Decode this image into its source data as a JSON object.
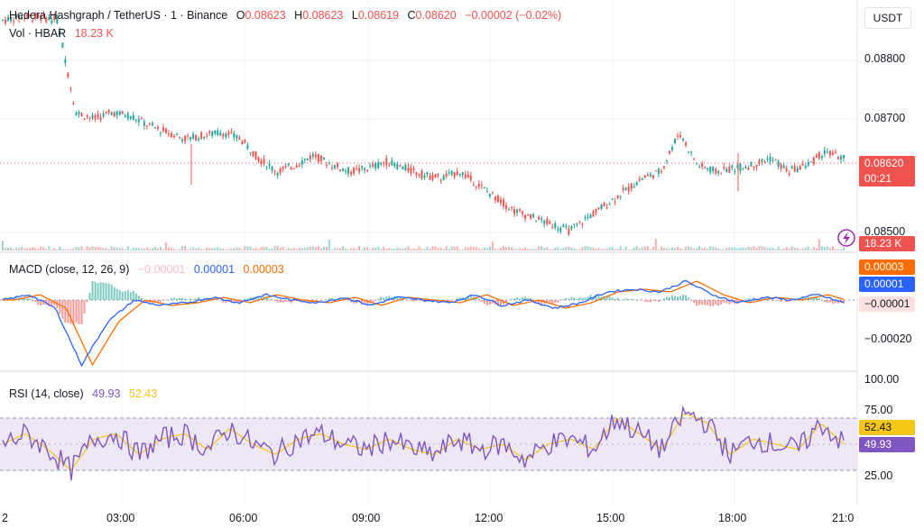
{
  "header": {
    "symbol": "Hedera Hashgraph / TetherUS · 1 · Binance",
    "o_label": "O",
    "o_value": "0.08623",
    "h_label": "H",
    "h_value": "0.08623",
    "l_label": "L",
    "l_value": "0.08619",
    "c_label": "C",
    "c_value": "0.08620",
    "change": "−0.00002 (−0.02%)",
    "vol_label": "Vol · HBAR",
    "vol_value": "18.23 K"
  },
  "price_axis": {
    "currency": "USDT",
    "ticks": [
      "0.08800",
      "0.08700",
      "0.08500"
    ],
    "last_price": "0.08620",
    "countdown": "00:21",
    "volume_tag": "18.23 K"
  },
  "macd": {
    "title": "MACD (close, 12, 26, 9)",
    "hist_value": "−0.00001",
    "macd_value": "0.00001",
    "signal_value": "0.00003",
    "tag_signal": "0.00003",
    "tag_macd": "0.00001",
    "tag_hist": "−0.00001",
    "tick": "−0.00020"
  },
  "rsi": {
    "title": "RSI (14, close)",
    "rsi_value": "49.93",
    "ma_value": "52.43",
    "ticks": [
      "100.00",
      "75.00",
      "25.00"
    ],
    "tag_ma": "52.43",
    "tag_rsi": "49.93"
  },
  "time_axis": [
    "2",
    "03:00",
    "06:00",
    "09:00",
    "12:00",
    "15:00",
    "18:00",
    "21:0"
  ],
  "colors": {
    "up": "#26a69a",
    "down": "#ef5350",
    "macd": "#2962ff",
    "signal": "#ff6d00",
    "rsi": "#7e57c2",
    "rsi_ma": "#f5c518",
    "band": "#ede7f6"
  },
  "chart_data": [
    {
      "type": "line",
      "title": "Hedera Hashgraph / TetherUS · 1 · Binance",
      "series": [
        {
          "values": [
            0.0883,
            0.08835,
            0.08835,
            0.0883,
            0.0869,
            0.0868,
            0.0869,
            0.08685,
            0.0867,
            0.0866,
            0.0865,
            0.08655,
            0.0866,
            0.0865,
            0.0862,
            0.086,
            0.0861,
            0.08625,
            0.0861,
            0.086,
            0.08605,
            0.08615,
            0.08605,
            0.08595,
            0.0859,
            0.086,
            0.0858,
            0.0856,
            0.0854,
            0.0853,
            0.0852,
            0.0851,
            0.0853,
            0.0855,
            0.0857,
            0.0859,
            0.086,
            0.0866,
            0.0861,
            0.086,
            0.08605,
            0.0861,
            0.0862,
            0.086,
            0.0861,
            0.0863,
            0.0862
          ]
        }
      ],
      "ylim": [
        0.0848,
        0.0885
      ],
      "ticks": [
        "0.08800",
        "0.08700",
        "0.08500"
      ]
    },
    {
      "type": "line",
      "title": "MACD (close, 12, 26, 9)",
      "series": [
        {
          "values": [
            0.0,
            2e-05,
            -3e-05,
            -0.00024,
            -8e-05,
            0.0,
            -2e-05,
            -1e-05,
            1e-05,
            -1e-05,
            2e-05,
            0.0,
            -1e-05,
            1e-05,
            -2e-05,
            1e-05,
            0.0,
            -1e-05,
            2e-05,
            -2e-05,
            0.0,
            -3e-05,
            -1e-05,
            3e-05,
            4e-05,
            3e-05,
            7e-05,
            2e-05,
            -1e-05,
            1e-05,
            0.0,
            2e-05,
            -1e-05
          ]
        }
      ]
    },
    {
      "type": "line",
      "title": "RSI (14, close)",
      "series": [
        {
          "values": [
            50,
            60,
            45,
            25,
            55,
            60,
            40,
            55,
            60,
            45,
            65,
            50,
            40,
            55,
            60,
            50,
            45,
            55,
            45,
            40,
            55,
            45,
            50,
            35,
            50,
            55,
            45,
            75,
            60,
            45,
            80,
            70,
            40,
            55,
            50,
            45,
            70,
            50
          ]
        }
      ],
      "ylim": [
        0,
        100
      ],
      "ticks": [
        "100.00",
        "75.00",
        "25.00"
      ]
    }
  ]
}
